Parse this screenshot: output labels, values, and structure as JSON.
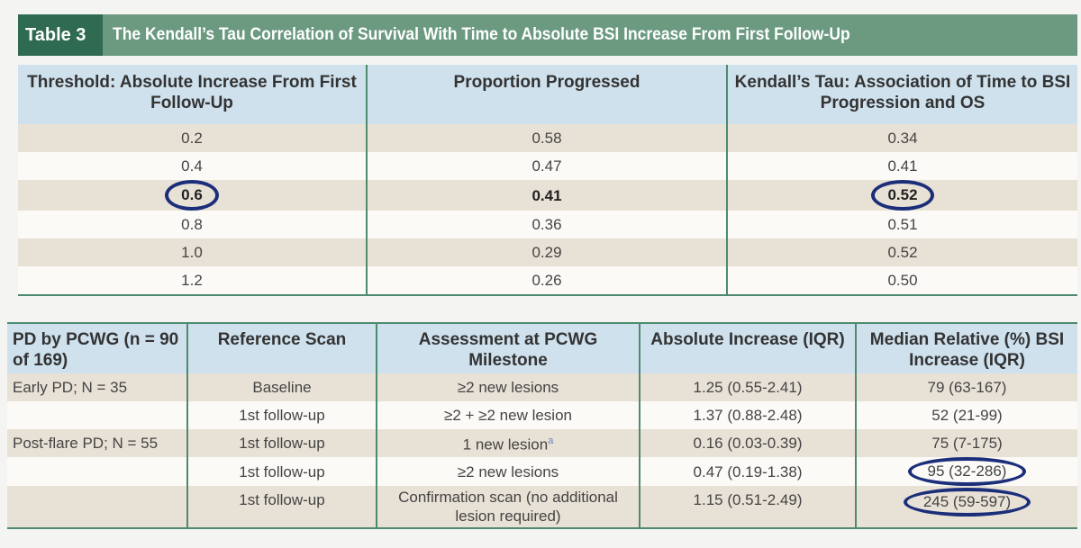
{
  "title": {
    "label": "Table 3",
    "text": "The Kendall’s Tau Correlation of Survival With Time to Absolute BSI Increase From First Follow-Up"
  },
  "table1": {
    "headers": [
      "Threshold: Absolute Increase From First Follow-Up",
      "Proportion Progressed",
      "Kendall’s Tau: Association of Time to BSI Progression and OS"
    ],
    "rows": [
      [
        "0.2",
        "0.58",
        "0.34"
      ],
      [
        "0.4",
        "0.47",
        "0.41"
      ],
      [
        "0.6",
        "0.41",
        "0.52"
      ],
      [
        "0.8",
        "0.36",
        "0.51"
      ],
      [
        "1.0",
        "0.29",
        "0.52"
      ],
      [
        "1.2",
        "0.26",
        "0.50"
      ]
    ]
  },
  "table2": {
    "headers": [
      "PD by PCWG (n = 90 of 169)",
      "Reference Scan",
      "Assessment at PCWG Milestone",
      "Absolute Increase (IQR)",
      "Median Relative (%) BSI Increase (IQR)"
    ],
    "rows": [
      [
        "Early PD; N = 35",
        "Baseline",
        "≥2 new lesions",
        "1.25 (0.55-2.41)",
        "79 (63-167)"
      ],
      [
        "",
        "1st follow-up",
        "≥2 + ≥2 new lesion",
        "1.37 (0.88-2.48)",
        "52 (21-99)"
      ],
      [
        "Post-flare PD; N = 55",
        "1st follow-up",
        "1 new lesion",
        "0.16 (0.03-0.39)",
        "75 (7-175)"
      ],
      [
        "",
        "1st follow-up",
        "≥2 new lesions",
        "0.47 (0.19-1.38)",
        "95 (32-286)"
      ],
      [
        "",
        "1st follow-up",
        "Confirmation scan (no additional lesion required)",
        "1.15 (0.51-2.49)",
        "245 (59-597)"
      ]
    ],
    "footnote_mark": "a"
  },
  "colors": {
    "title_bg": "#6b9a80",
    "label_bg": "#2f6b50",
    "header_bg": "#cfe1ed",
    "row_shade": "#e8e1d6",
    "annotation_oval": "#1b2e7a"
  }
}
